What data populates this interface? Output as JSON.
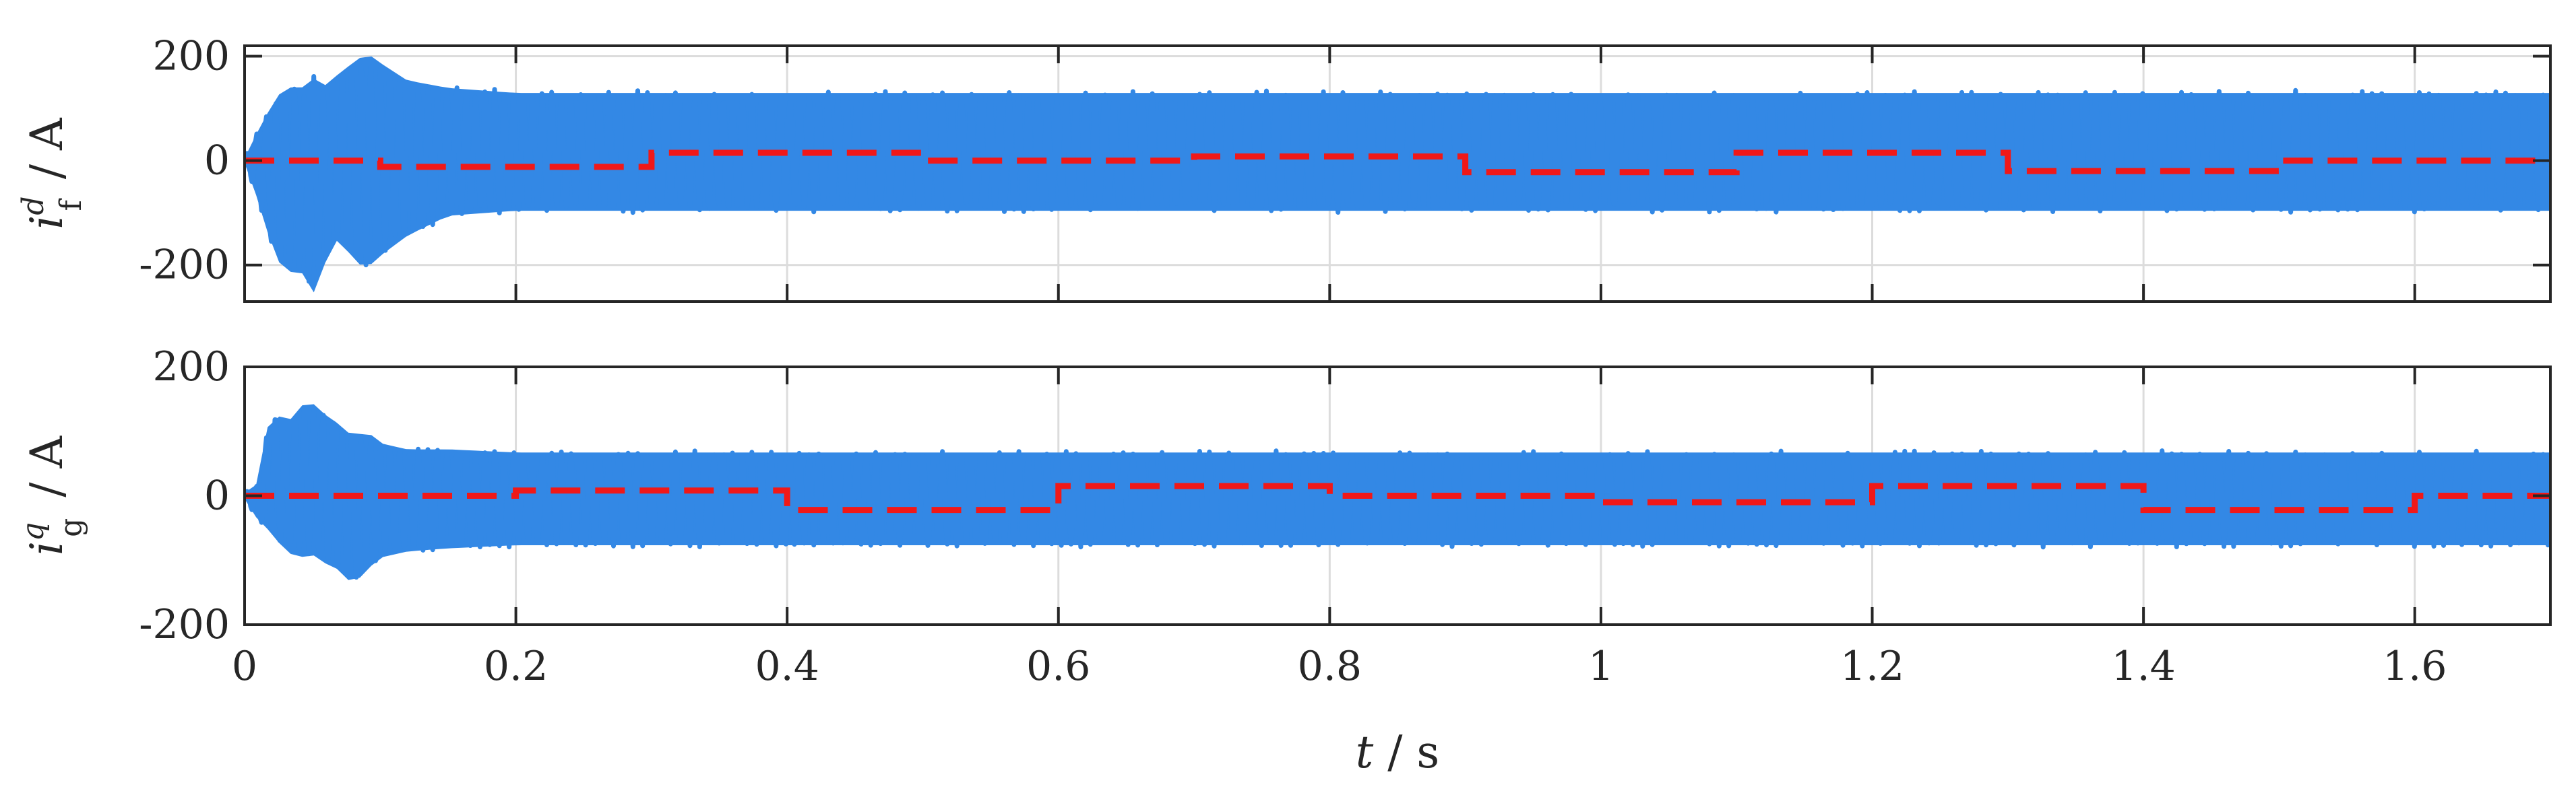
{
  "colors": {
    "oscillation": "#3388e5",
    "reference": "#f01818",
    "axes": "#262626",
    "grid": "#dcdcdc"
  },
  "chart_data": [
    {
      "type": "line",
      "xlabel": {
        "var": "t",
        "unit": "s"
      },
      "ylabel": {
        "var": "i",
        "sub": "f",
        "sup": "d",
        "unit": "A"
      },
      "xlim": [
        0,
        1.7
      ],
      "ylim": [
        -270,
        220
      ],
      "yticks": [
        200,
        0,
        -200
      ],
      "ytick_labels": [
        "200",
        "0",
        "-200"
      ],
      "xticks": [
        0,
        0.2,
        0.4,
        0.6,
        0.8,
        1,
        1.2,
        1.4,
        1.6
      ],
      "show_xtick_labels": false,
      "grid": true,
      "series": [
        {
          "style": "solid",
          "color_key": "oscillation",
          "envelope": {
            "t": [
              0,
              0.01,
              0.02,
              0.03,
              0.04,
              0.05,
              0.06,
              0.07,
              0.08,
              0.09,
              0.1,
              0.12,
              0.15,
              0.2,
              1.7
            ],
            "upper": [
              5,
              60,
              110,
              150,
              140,
              165,
              150,
              175,
              195,
              215,
              195,
              160,
              145,
              135,
              135
            ],
            "lower": [
              -5,
              -80,
              -170,
              -230,
              -210,
              -270,
              -200,
              -150,
              -200,
              -215,
              -190,
              -150,
              -110,
              -100,
              -100
            ]
          }
        },
        {
          "style": "dashed",
          "color_key": "reference",
          "steps": [
            {
              "t0": 0,
              "t1": 0.1,
              "v": 0
            },
            {
              "t0": 0.1,
              "t1": 0.3,
              "v": -12
            },
            {
              "t0": 0.3,
              "t1": 0.5,
              "v": 15
            },
            {
              "t0": 0.5,
              "t1": 0.7,
              "v": 0
            },
            {
              "t0": 0.7,
              "t1": 0.9,
              "v": 8
            },
            {
              "t0": 0.9,
              "t1": 1.1,
              "v": -22
            },
            {
              "t0": 1.1,
              "t1": 1.3,
              "v": 15
            },
            {
              "t0": 1.3,
              "t1": 1.5,
              "v": -20
            },
            {
              "t0": 1.5,
              "t1": 1.7,
              "v": 0
            }
          ]
        }
      ]
    },
    {
      "type": "line",
      "xlabel": {
        "var": "t",
        "unit": "s"
      },
      "ylabel": {
        "var": "i",
        "sub": "g",
        "sup": "q",
        "unit": "A"
      },
      "xlim": [
        0,
        1.7
      ],
      "ylim": [
        -200,
        200
      ],
      "yticks": [
        200,
        0,
        -200
      ],
      "ytick_labels": [
        "200",
        "0",
        "-200"
      ],
      "xticks": [
        0,
        0.2,
        0.4,
        0.6,
        0.8,
        1,
        1.2,
        1.4,
        1.6
      ],
      "xtick_labels": [
        "0",
        "0.2",
        "0.4",
        "0.6",
        "0.8",
        "1",
        "1.2",
        "1.4",
        "1.6"
      ],
      "show_xtick_labels": true,
      "grid": true,
      "series": [
        {
          "style": "solid",
          "color_key": "oscillation",
          "envelope": {
            "t": [
              0,
              0.01,
              0.02,
              0.03,
              0.04,
              0.05,
              0.06,
              0.07,
              0.08,
              0.09,
              0.1,
              0.12,
              0.15,
              0.2,
              1.7
            ],
            "upper": [
              5,
              20,
              150,
              110,
              145,
              150,
              130,
              115,
              95,
              105,
              85,
              75,
              75,
              70,
              70
            ],
            "lower": [
              -5,
              -40,
              -60,
              -90,
              -100,
              -95,
              -110,
              -120,
              -145,
              -120,
              -100,
              -90,
              -85,
              -80,
              -80
            ]
          }
        },
        {
          "style": "dashed",
          "color_key": "reference",
          "steps": [
            {
              "t0": 0,
              "t1": 0.2,
              "v": 0
            },
            {
              "t0": 0.2,
              "t1": 0.4,
              "v": 8
            },
            {
              "t0": 0.4,
              "t1": 0.6,
              "v": -22
            },
            {
              "t0": 0.6,
              "t1": 0.8,
              "v": 15
            },
            {
              "t0": 0.8,
              "t1": 1.0,
              "v": 0
            },
            {
              "t0": 1.0,
              "t1": 1.2,
              "v": -10
            },
            {
              "t0": 1.2,
              "t1": 1.4,
              "v": 15
            },
            {
              "t0": 1.4,
              "t1": 1.6,
              "v": -22
            },
            {
              "t0": 1.6,
              "t1": 1.7,
              "v": 0
            }
          ]
        }
      ]
    }
  ]
}
